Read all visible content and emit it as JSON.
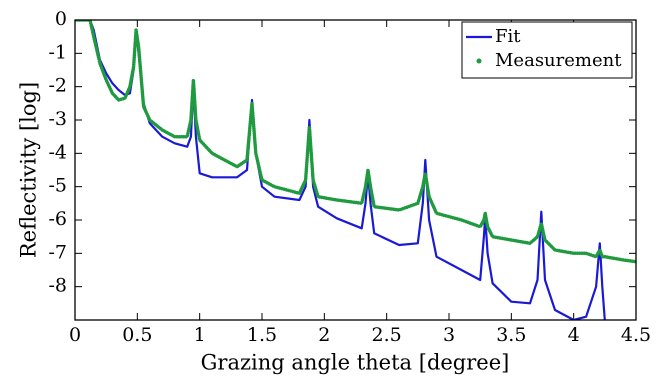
{
  "chart_data": {
    "type": "line",
    "xlabel": "Grazing angle theta [degree]",
    "ylabel": "Reflectivity [log]",
    "x": [
      0,
      0.12,
      0.15,
      0.2,
      0.25,
      0.3,
      0.35,
      0.4,
      0.44,
      0.47,
      0.49,
      0.51,
      0.55,
      0.6,
      0.65,
      0.7,
      0.8,
      0.9,
      0.93,
      0.95,
      0.97,
      1.0,
      1.1,
      1.3,
      1.38,
      1.42,
      1.45,
      1.5,
      1.6,
      1.8,
      1.85,
      1.88,
      1.91,
      1.95,
      2.1,
      2.3,
      2.33,
      2.35,
      2.37,
      2.4,
      2.6,
      2.75,
      2.79,
      2.81,
      2.84,
      2.9,
      3.1,
      3.25,
      3.28,
      3.29,
      3.31,
      3.35,
      3.5,
      3.65,
      3.71,
      3.74,
      3.77,
      3.85,
      4.0,
      4.1,
      4.18,
      4.21,
      4.23,
      4.25,
      4.4,
      4.5
    ],
    "series": [
      {
        "name": "Fit",
        "color": "#1a1ad6",
        "linestyle": "solid",
        "values": [
          0,
          0,
          -0.3,
          -1.2,
          -1.6,
          -1.9,
          -2.1,
          -2.25,
          -2.2,
          -1.5,
          -0.3,
          -1.0,
          -2.5,
          -3.1,
          -3.3,
          -3.5,
          -3.7,
          -3.8,
          -3.5,
          -2.0,
          -3.5,
          -4.6,
          -4.72,
          -4.72,
          -4.5,
          -2.4,
          -4.0,
          -5.0,
          -5.3,
          -5.4,
          -5.0,
          -3.0,
          -5.0,
          -5.6,
          -5.95,
          -6.25,
          -5.5,
          -4.6,
          -5.5,
          -6.4,
          -6.75,
          -6.7,
          -5.5,
          -4.2,
          -6.0,
          -7.1,
          -7.5,
          -7.8,
          -6.5,
          -5.9,
          -7.0,
          -7.9,
          -8.45,
          -8.5,
          -7.8,
          -5.75,
          -7.8,
          -8.7,
          -9.0,
          -8.9,
          -8.0,
          -6.7,
          -8.0,
          -9.0,
          null,
          null
        ]
      },
      {
        "name": "Measurement",
        "color": "#1f9a3f",
        "linestyle": "dotted",
        "values": [
          0,
          0,
          -0.5,
          -1.3,
          -1.8,
          -2.2,
          -2.4,
          -2.35,
          -2.0,
          -1.4,
          -0.3,
          -0.8,
          -2.6,
          -3.0,
          -3.15,
          -3.3,
          -3.5,
          -3.5,
          -3.0,
          -1.8,
          -3.0,
          -3.6,
          -4.0,
          -4.4,
          -4.2,
          -2.5,
          -4.0,
          -4.8,
          -5.0,
          -5.2,
          -4.8,
          -3.2,
          -4.8,
          -5.3,
          -5.4,
          -5.5,
          -5.0,
          -4.5,
          -5.0,
          -5.6,
          -5.7,
          -5.5,
          -5.0,
          -4.6,
          -5.3,
          -5.8,
          -6.0,
          -6.2,
          -6.0,
          -5.8,
          -6.2,
          -6.5,
          -6.6,
          -6.7,
          -6.5,
          -6.1,
          -6.6,
          -6.9,
          -7.0,
          -7.0,
          -7.1,
          -6.9,
          -7.1,
          -7.1,
          -7.2,
          -7.25
        ]
      }
    ],
    "xlim": [
      0,
      4.5
    ],
    "xticks": [
      0,
      0.5,
      1,
      1.5,
      2,
      2.5,
      3,
      3.5,
      4,
      4.5
    ],
    "ylim": [
      -9,
      0
    ],
    "yticks": [
      0,
      -1,
      -2,
      -3,
      -4,
      -5,
      -6,
      -7,
      -8
    ],
    "legend": "upper right"
  }
}
